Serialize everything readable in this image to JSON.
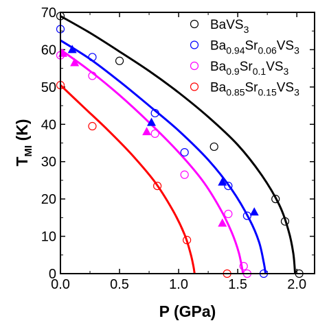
{
  "chart_data": {
    "type": "scatter",
    "xlabel": "P (GPa)",
    "ylabel": "T",
    "ylabel_sub": "MI",
    "ylabel_unit": " (K)",
    "xlim": [
      0.0,
      2.15
    ],
    "ylim": [
      0,
      70
    ],
    "xticks": [
      0.0,
      0.5,
      1.0,
      1.5,
      2.0
    ],
    "xtick_labels": [
      "0.0",
      "0.5",
      "1.0",
      "1.5",
      "2.0"
    ],
    "yticks": [
      0,
      10,
      20,
      30,
      40,
      50,
      60,
      70
    ],
    "ytick_labels": [
      "0",
      "10",
      "20",
      "30",
      "40",
      "50",
      "60",
      "70"
    ],
    "grid": false,
    "legend_position": "top-right",
    "series": [
      {
        "name": "BaVS3",
        "legend": [
          {
            "t": "BaVS",
            "sub": false
          },
          {
            "t": "3",
            "sub": true
          }
        ],
        "color": "#000000",
        "circles": [
          [
            0.0,
            69
          ],
          [
            0.5,
            57
          ],
          [
            1.3,
            34
          ],
          [
            1.82,
            20
          ],
          [
            1.9,
            14
          ],
          [
            2.02,
            0
          ]
        ],
        "triangles": [],
        "fit": [
          [
            0.0,
            69
          ],
          [
            0.25,
            64.5
          ],
          [
            0.5,
            59.5
          ],
          [
            0.75,
            54.3
          ],
          [
            1.0,
            48.5
          ],
          [
            1.25,
            42
          ],
          [
            1.5,
            34.5
          ],
          [
            1.7,
            26.5
          ],
          [
            1.85,
            18.5
          ],
          [
            1.93,
            11.5
          ],
          [
            1.97,
            5.5
          ],
          [
            1.985,
            0
          ]
        ]
      },
      {
        "name": "Ba0.94Sr0.06VS3",
        "legend": [
          {
            "t": "Ba",
            "sub": false
          },
          {
            "t": "0.94",
            "sub": true
          },
          {
            "t": "Sr",
            "sub": false
          },
          {
            "t": "0.06",
            "sub": true
          },
          {
            "t": "VS",
            "sub": false
          },
          {
            "t": "3",
            "sub": true
          }
        ],
        "color": "#0000ff",
        "circles": [
          [
            0.0,
            65.5
          ],
          [
            0.27,
            58
          ],
          [
            0.8,
            43
          ],
          [
            1.05,
            32.5
          ],
          [
            1.42,
            23.5
          ],
          [
            1.58,
            15.5
          ],
          [
            1.72,
            0
          ]
        ],
        "triangles": [
          [
            0.1,
            60
          ],
          [
            0.77,
            40.5
          ],
          [
            1.37,
            24.5
          ],
          [
            1.64,
            16.5
          ]
        ],
        "fit": [
          [
            0.0,
            62.5
          ],
          [
            0.25,
            57.5
          ],
          [
            0.5,
            51.5
          ],
          [
            0.75,
            45
          ],
          [
            1.0,
            38.3
          ],
          [
            1.25,
            30.5
          ],
          [
            1.45,
            22.5
          ],
          [
            1.6,
            14.5
          ],
          [
            1.68,
            8.5
          ],
          [
            1.72,
            3
          ],
          [
            1.735,
            0
          ]
        ]
      },
      {
        "name": "Ba0.9Sr0.1VS3",
        "legend": [
          {
            "t": "Ba",
            "sub": false
          },
          {
            "t": "0.9",
            "sub": true
          },
          {
            "t": "Sr",
            "sub": false
          },
          {
            "t": "0.1",
            "sub": true
          },
          {
            "t": "VS",
            "sub": false
          },
          {
            "t": "3",
            "sub": true
          }
        ],
        "color": "#ff00ff",
        "circles": [
          [
            0.0,
            58.5
          ],
          [
            0.27,
            53
          ],
          [
            0.8,
            37.5
          ],
          [
            1.05,
            26.5
          ],
          [
            1.42,
            16
          ],
          [
            1.55,
            2
          ],
          [
            1.58,
            0
          ]
        ],
        "triangles": [
          [
            0.02,
            59
          ],
          [
            0.12,
            56.5
          ],
          [
            0.73,
            38
          ],
          [
            1.37,
            13.5
          ]
        ],
        "fit": [
          [
            0.0,
            60
          ],
          [
            0.25,
            54.3
          ],
          [
            0.5,
            47.8
          ],
          [
            0.75,
            40.5
          ],
          [
            1.0,
            32.5
          ],
          [
            1.2,
            25
          ],
          [
            1.35,
            17.5
          ],
          [
            1.45,
            11
          ],
          [
            1.51,
            5.5
          ],
          [
            1.545,
            0
          ]
        ]
      },
      {
        "name": "Ba0.85Sr0.15VS3",
        "legend": [
          {
            "t": "Ba",
            "sub": false
          },
          {
            "t": "0.85",
            "sub": true
          },
          {
            "t": "Sr",
            "sub": false
          },
          {
            "t": "0.15",
            "sub": true
          },
          {
            "t": "VS",
            "sub": false
          },
          {
            "t": "3",
            "sub": true
          }
        ],
        "color": "#ff0000",
        "circles": [
          [
            0.0,
            50.5
          ],
          [
            0.27,
            39.5
          ],
          [
            0.82,
            23.5
          ],
          [
            1.07,
            9
          ],
          [
            1.41,
            0
          ]
        ],
        "triangles": [],
        "fit": [
          [
            0.0,
            50.5
          ],
          [
            0.2,
            44.5
          ],
          [
            0.4,
            38.5
          ],
          [
            0.6,
            32
          ],
          [
            0.8,
            24.5
          ],
          [
            0.95,
            17
          ],
          [
            1.05,
            10.5
          ],
          [
            1.1,
            5.5
          ],
          [
            1.125,
            2
          ],
          [
            1.135,
            0
          ]
        ]
      }
    ]
  }
}
